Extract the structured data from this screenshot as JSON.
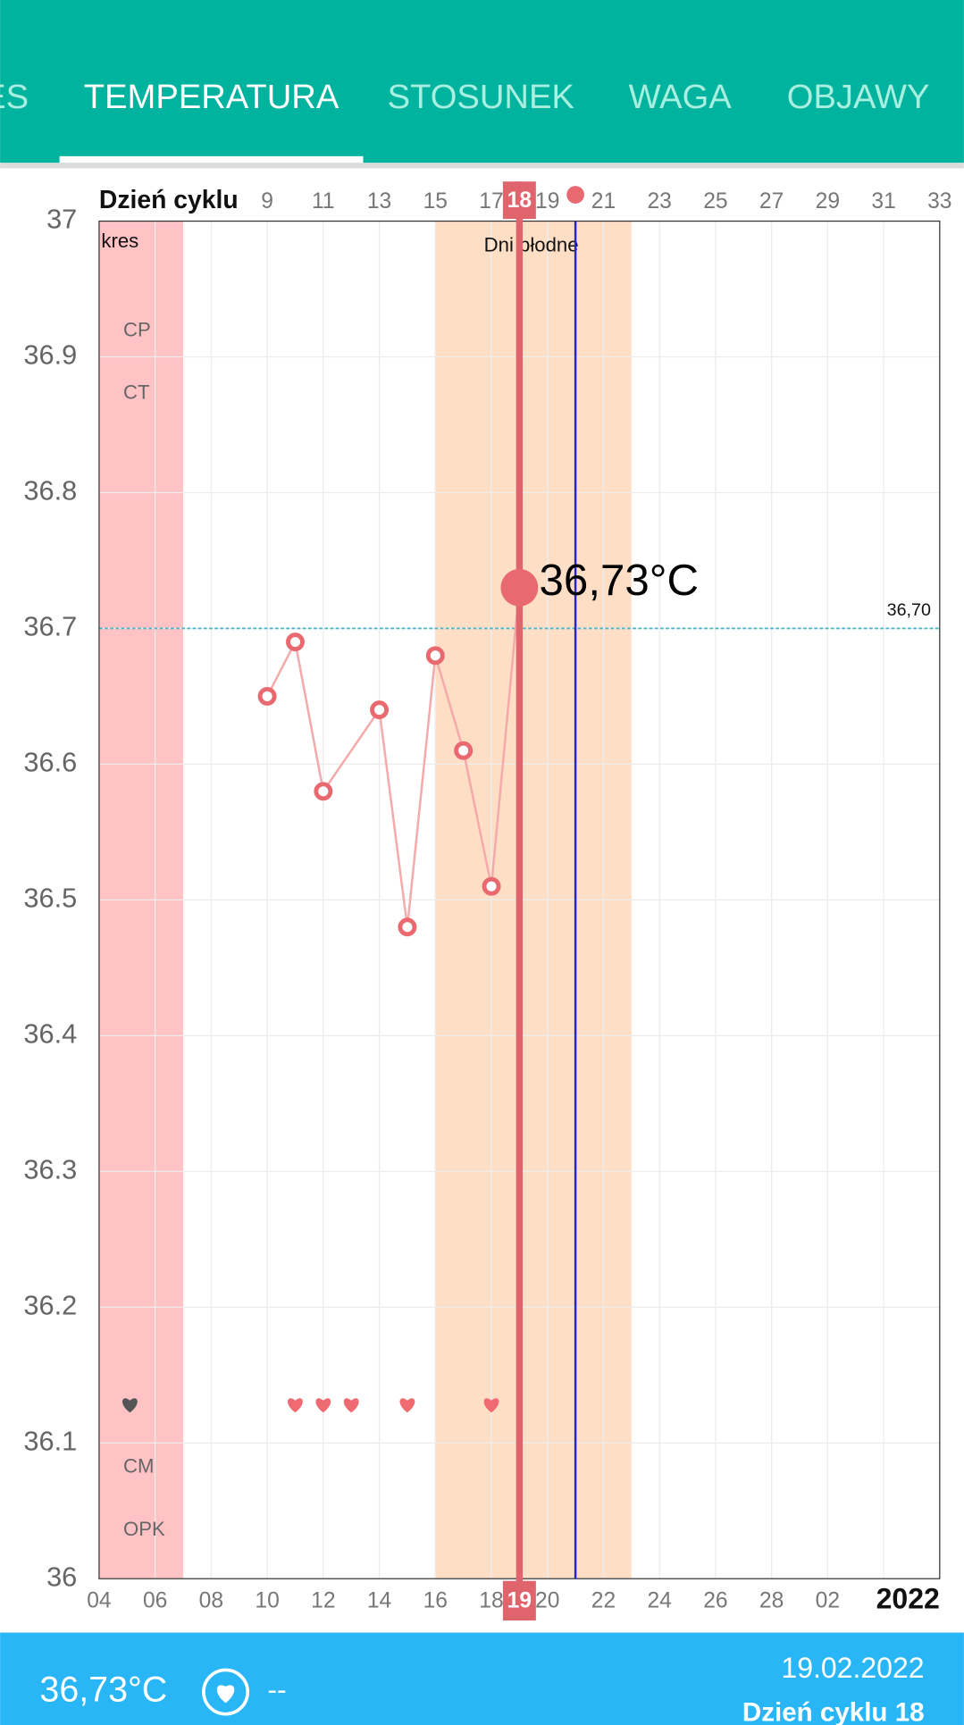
{
  "tabs": [
    "ES",
    "TEMPERATURA",
    "STOSUNEK",
    "WAGA",
    "OBJAWY"
  ],
  "chart_data": {
    "type": "line",
    "x_axis_title": "Dzień cyklu",
    "year_label": "2022",
    "x": [
      9,
      10,
      11,
      13,
      14,
      15,
      16,
      17,
      18
    ],
    "values": [
      36.65,
      36.69,
      36.58,
      36.64,
      36.48,
      36.68,
      36.61,
      36.51,
      36.73
    ],
    "value_labels": [
      null,
      null,
      null,
      null,
      null,
      null,
      null,
      null,
      "36,73°C"
    ],
    "color": "#e86a70",
    "xlim": [
      3,
      33
    ],
    "ylim": [
      36,
      37
    ],
    "yticks": [
      36,
      36.1,
      36.2,
      36.3,
      36.4,
      36.5,
      36.6,
      36.7,
      36.8,
      36.9,
      37
    ],
    "xticks": [
      9,
      11,
      13,
      15,
      17,
      19,
      21,
      23,
      25,
      27,
      29,
      31,
      33
    ],
    "date_ticks": [
      {
        "value": 3,
        "label": "04"
      },
      {
        "value": 5,
        "label": "06"
      },
      {
        "value": 7,
        "label": "08"
      },
      {
        "value": 9,
        "label": "10"
      },
      {
        "value": 11,
        "label": "12"
      },
      {
        "value": 13,
        "label": "14"
      },
      {
        "value": 15,
        "label": "16"
      },
      {
        "value": 17,
        "label": "18"
      },
      {
        "value": 19,
        "label": "20"
      },
      {
        "value": 21,
        "label": "22"
      },
      {
        "value": 23,
        "label": "24"
      },
      {
        "value": 25,
        "label": "26"
      },
      {
        "value": 27,
        "label": "28"
      },
      {
        "value": 29,
        "label": "02"
      }
    ],
    "grid": true,
    "bands": [
      {
        "label": "kres",
        "range": [
          1,
          6
        ],
        "color": "#ffc2c5"
      },
      {
        "label": "Dni płodne",
        "range": [
          15,
          22
        ],
        "color": "#ffdec6"
      }
    ],
    "reference_line": {
      "value": 36.7,
      "label": "36,70",
      "color": "#4db6c6"
    },
    "cursor": {
      "x": 18,
      "bottom_label": "19",
      "color": "#e0646c"
    },
    "today_line": {
      "x": 20,
      "color": "#2424d0"
    },
    "intercourse": {
      "x": [
        10,
        11,
        12,
        14,
        17
      ],
      "color": "#f06a72"
    },
    "row_labels": [
      "CP",
      "CT",
      "CM",
      "OPK"
    ]
  },
  "footer": {
    "temperature": "36,73°C",
    "intercourse": "--",
    "date": "19.02.2022",
    "cycle_day": "Dzień cyklu 18"
  }
}
